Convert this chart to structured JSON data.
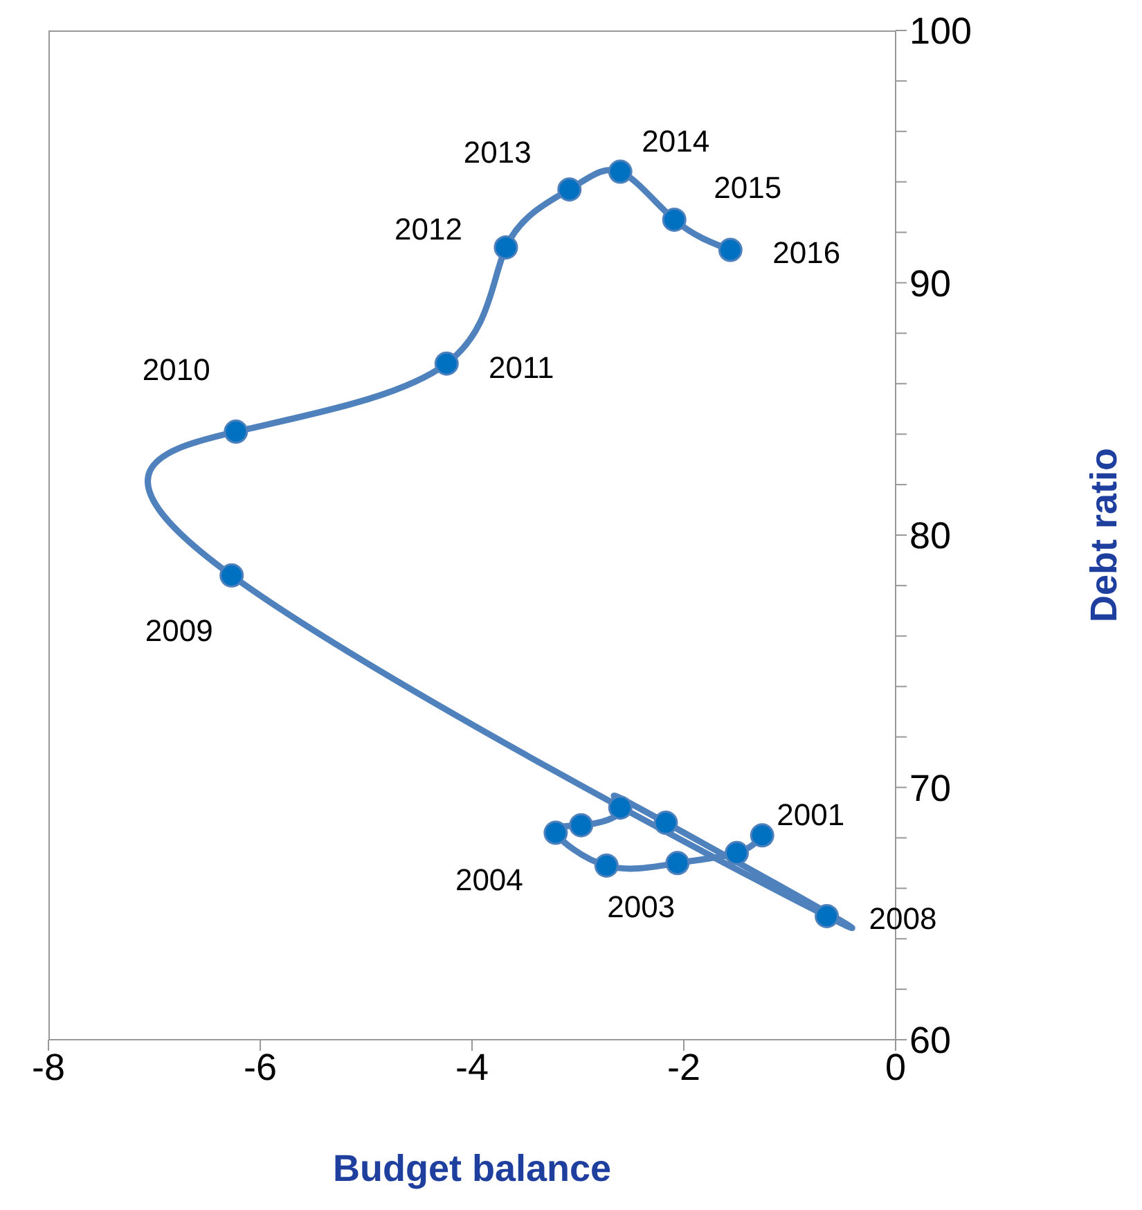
{
  "chart_data": {
    "type": "line",
    "xlabel": "Budget balance",
    "ylabel": "Debt ratio",
    "x": [
      -1.26,
      -1.5,
      -2.06,
      -2.73,
      -3.21,
      -2.97,
      -2.6,
      -2.17,
      -0.65,
      -6.27,
      -6.23,
      -4.24,
      -3.68,
      -3.08,
      -2.6,
      -2.09,
      -1.56
    ],
    "series": [
      {
        "color": "#4f81bd",
        "values": [
          68.1,
          67.4,
          67.0,
          66.9,
          68.2,
          68.5,
          69.2,
          68.6,
          64.9,
          78.4,
          84.1,
          86.8,
          91.4,
          93.7,
          94.4,
          92.5,
          91.3
        ]
      }
    ],
    "marker": "circle",
    "line_style": "solid",
    "grid": false,
    "xlim": [
      -8,
      0
    ],
    "xticks": [
      -8,
      -6,
      -4,
      -2,
      0
    ],
    "ylim": [
      60,
      100
    ],
    "yticks": [
      60,
      {
        "value": 62,
        "label": null
      },
      {
        "value": 64,
        "label": null
      },
      {
        "value": 66,
        "label": null
      },
      {
        "value": 68,
        "label": null
      },
      70,
      {
        "value": 72,
        "label": null
      },
      {
        "value": 74,
        "label": null
      },
      {
        "value": 76,
        "label": null
      },
      {
        "value": 78,
        "label": null
      },
      80,
      {
        "value": 82,
        "label": null
      },
      {
        "value": 84,
        "label": null
      },
      {
        "value": 86,
        "label": null
      },
      {
        "value": 88,
        "label": null
      },
      90,
      {
        "value": 92,
        "label": null
      },
      {
        "value": 94,
        "label": null
      },
      {
        "value": 96,
        "label": null
      },
      {
        "value": 98,
        "label": null
      },
      100
    ],
    "annotations": [
      {
        "text": "2001",
        "x": -1.26,
        "y": 68.1
      },
      {
        "text": "2003",
        "x": -2.73,
        "y": 66.9
      },
      {
        "text": "2004",
        "x": -3.21,
        "y": 68.2
      },
      {
        "text": "2008",
        "x": -0.65,
        "y": 64.9
      },
      {
        "text": "2009",
        "x": -6.27,
        "y": 78.4
      },
      {
        "text": "2010",
        "x": -6.23,
        "y": 84.1
      },
      {
        "text": "2011",
        "x": -4.24,
        "y": 86.8
      },
      {
        "text": "2012",
        "x": -3.68,
        "y": 91.4
      },
      {
        "text": "2013",
        "x": -3.08,
        "y": 93.7
      },
      {
        "text": "2014",
        "x": -2.6,
        "y": 94.4
      },
      {
        "text": "2015",
        "x": -2.09,
        "y": 92.5
      },
      {
        "text": "2016",
        "x": -1.56,
        "y": 91.3
      }
    ]
  }
}
